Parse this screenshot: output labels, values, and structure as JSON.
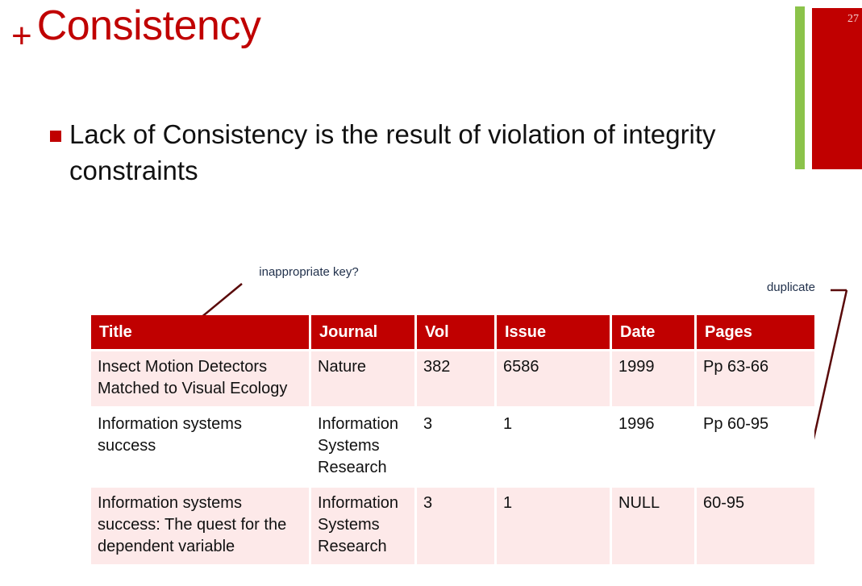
{
  "slide": {
    "plus": "+",
    "title": "Consistency",
    "number": "27"
  },
  "bullet": {
    "text": "Lack of Consistency is the result of violation of integrity constraints"
  },
  "annotations": {
    "key": "inappropriate key?",
    "duplicate": "duplicate"
  },
  "table": {
    "headers": [
      "Title",
      "Journal",
      "Vol",
      "Issue",
      "Date",
      "Pages"
    ],
    "rows": [
      [
        "Insect Motion Detectors Matched to Visual Ecology",
        "Nature",
        "382",
        "6586",
        "1999",
        "Pp 63-66"
      ],
      [
        "Information systems success",
        "Information Systems Research",
        "3",
        "1",
        "1996",
        "Pp 60-95"
      ],
      [
        "Information systems success: The quest for the dependent variable",
        "Information Systems Research",
        "3",
        "1",
        "NULL",
        "60-95"
      ]
    ]
  },
  "colors": {
    "accent": "#c00000",
    "green_bar": "#8bc34a",
    "row_pink": "#fde9e9"
  }
}
